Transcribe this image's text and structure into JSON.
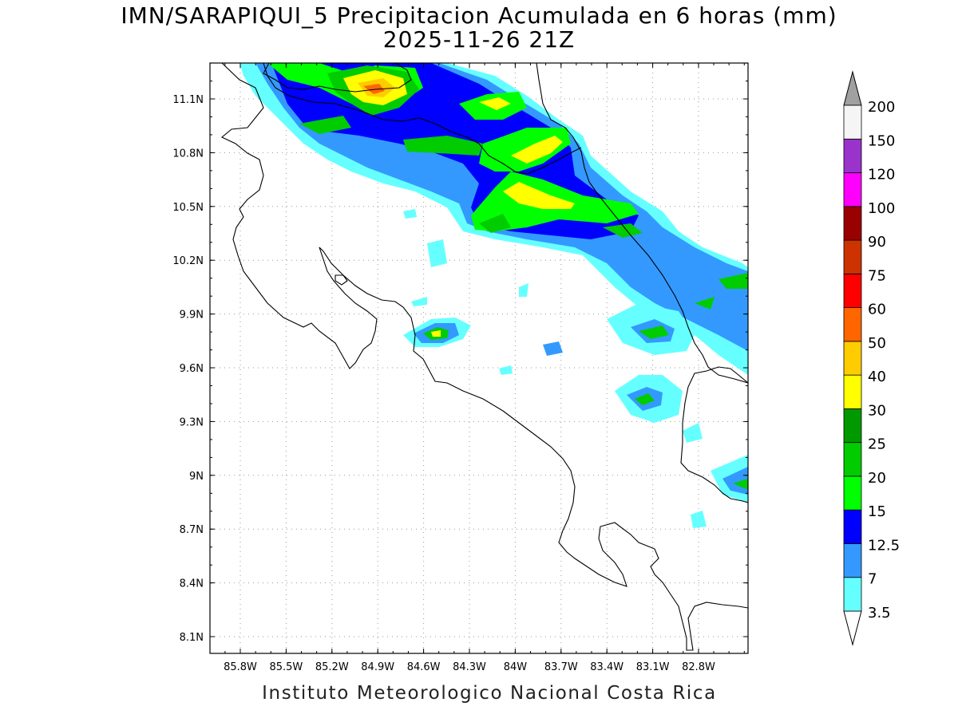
{
  "title": {
    "line1": "IMN/SARAPIQUI_5 Precipitacion Acumulada en 6 horas (mm)",
    "line2": "2025-11-26 21Z"
  },
  "credit": "Instituto Meteorologico Nacional Costa Rica",
  "axes": {
    "lat_labels": [
      "11.1N",
      "10.8N",
      "10.5N",
      "10.2N",
      "9.9N",
      "9.6N",
      "9.3N",
      "9N",
      "8.7N",
      "8.4N",
      "8.1N"
    ],
    "lon_labels": [
      "85.8W",
      "85.5W",
      "85.2W",
      "84.9W",
      "84.6W",
      "84.3W",
      "84W",
      "83.7W",
      "83.4W",
      "83.1W",
      "82.8W"
    ]
  },
  "colorbar": {
    "levels": [
      "3.5",
      "7",
      "12.5",
      "15",
      "20",
      "25",
      "30",
      "40",
      "50",
      "60",
      "75",
      "90",
      "100",
      "120",
      "150",
      "200"
    ],
    "colors": [
      "#66ffff",
      "#3399ff",
      "#0000ff",
      "#00ff00",
      "#00cc00",
      "#009900",
      "#ffff00",
      "#ffcc00",
      "#ff6600",
      "#ff0000",
      "#cc3300",
      "#990000",
      "#ff00ff",
      "#9933cc",
      "#f5f5f5"
    ],
    "over_color": "#a0a0a0",
    "under_color": "#ffffff"
  }
}
